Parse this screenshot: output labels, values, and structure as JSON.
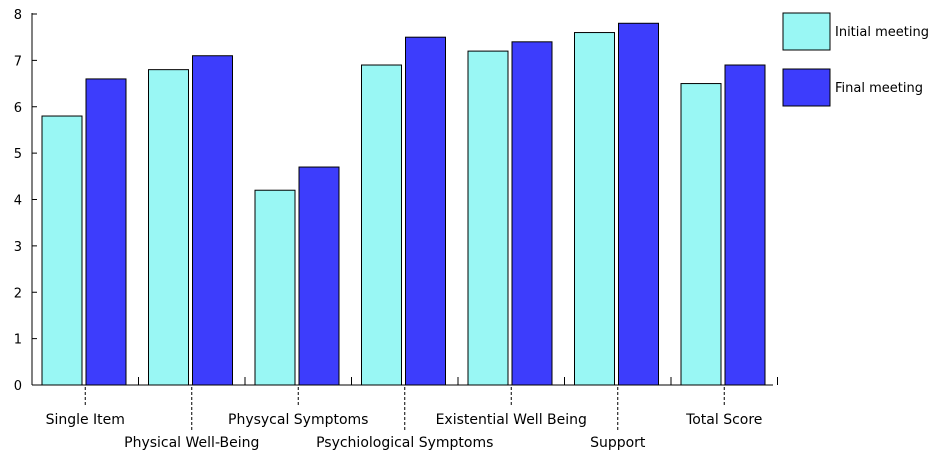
{
  "chart_data": {
    "type": "bar",
    "categories": [
      "Single Item",
      "Physical Well-Being",
      "Physycal Symptoms",
      "Psychiological Symptoms",
      "Existential Well Being",
      "Support",
      "Total Score"
    ],
    "series": [
      {
        "name": "Initial meeting",
        "color": "#99f7f4",
        "values": [
          5.8,
          6.8,
          4.2,
          6.9,
          7.2,
          7.6,
          6.5
        ]
      },
      {
        "name": "Final meeting",
        "color": "#3d3dfc",
        "values": [
          6.6,
          7.1,
          4.7,
          7.5,
          7.4,
          7.8,
          6.9
        ]
      }
    ],
    "ylim": [
      0,
      8
    ],
    "yticks": [
      0,
      1,
      2,
      3,
      4,
      5,
      6,
      7,
      8
    ],
    "title": "",
    "xlabel": "",
    "ylabel": "",
    "grid": false,
    "legend_position": "top-right"
  }
}
